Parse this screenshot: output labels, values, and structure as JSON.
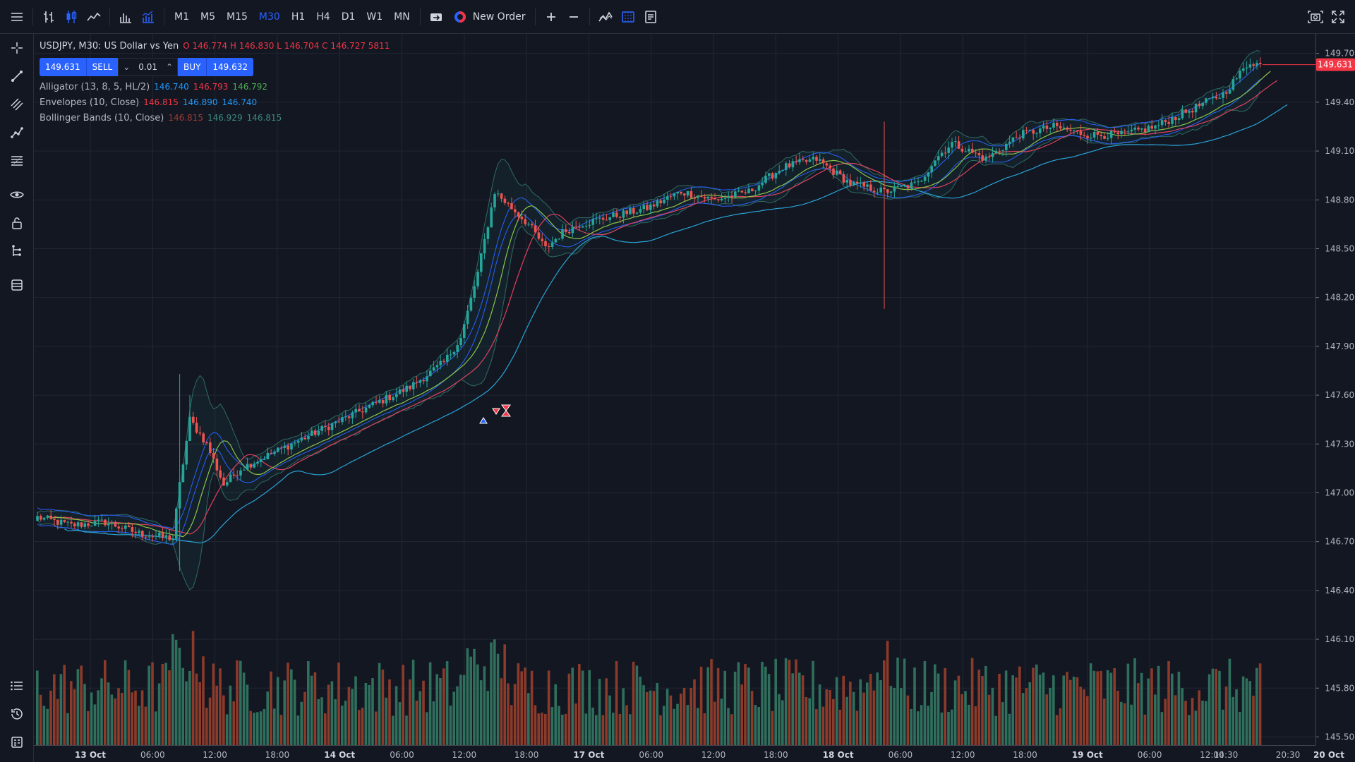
{
  "toolbar": {
    "timeframes": [
      "M1",
      "M5",
      "M15",
      "M30",
      "H1",
      "H4",
      "D1",
      "W1",
      "MN"
    ],
    "active_timeframe": "M30",
    "new_order_label": "New Order"
  },
  "legend": {
    "symbol_title": "USDJPY, M30: US Dollar vs Yen",
    "ohlc": "O 146.774 H 146.830 L 146.704 C 146.727 5811",
    "sell_price": "149.631",
    "sell_label": "SELL",
    "quantity": "0.01",
    "buy_label": "BUY",
    "buy_price": "149.632",
    "indicators": [
      {
        "name": "Alligator (13, 8, 5, HL/2)",
        "values": [
          "146.740",
          "146.793",
          "146.792"
        ],
        "colors": [
          "#2196f3",
          "#f23645",
          "#4caf50"
        ]
      },
      {
        "name": "Envelopes (10, Close)",
        "values": [
          "146.815",
          "146.890",
          "146.740"
        ],
        "colors": [
          "#f23645",
          "#2196f3",
          "#2196f3"
        ]
      },
      {
        "name": "Bollinger Bands (10, Close)",
        "values": [
          "146.815",
          "146.929",
          "146.815"
        ],
        "colors": [
          "#9c3b35",
          "#3a8a80",
          "#3a8a80"
        ]
      }
    ]
  },
  "colors": {
    "bull": "#26a69a",
    "bear": "#ef5350",
    "vol_bull": "#2f6f5c",
    "vol_bear": "#8c3a2a",
    "grid": "#232733",
    "current_price_bg": "#f23645"
  },
  "price_axis": {
    "labels": [
      "149.700",
      "149.400",
      "149.100",
      "148.800",
      "148.500",
      "148.200",
      "147.900",
      "147.600",
      "147.300",
      "147.000",
      "146.700",
      "146.400",
      "146.100",
      "145.800",
      "145.500"
    ],
    "current_price": "149.631"
  },
  "time_axis": {
    "labels": [
      "13 Oct",
      "06:00",
      "12:00",
      "18:00",
      "14 Oct",
      "06:00",
      "12:00",
      "18:00",
      "17 Oct",
      "06:00",
      "12:00",
      "18:00",
      "18 Oct",
      "06:00",
      "12:00",
      "18:00",
      "19 Oct",
      "06:00",
      "12:00",
      "14:30",
      "20:30",
      "20 Oct"
    ],
    "bold": [
      true,
      false,
      false,
      false,
      true,
      false,
      false,
      false,
      true,
      false,
      false,
      false,
      true,
      false,
      false,
      false,
      true,
      false,
      false,
      false,
      false,
      true
    ]
  },
  "chart_data": {
    "type": "candlestick",
    "symbol": "USDJPY",
    "timeframe": "M30",
    "ylim": [
      145.45,
      149.82
    ],
    "close_path": [
      [
        0,
        146.85
      ],
      [
        10,
        146.8
      ],
      [
        20,
        146.82
      ],
      [
        30,
        146.75
      ],
      [
        40,
        146.72
      ],
      [
        42,
        147.05
      ],
      [
        45,
        147.45
      ],
      [
        50,
        147.3
      ],
      [
        55,
        147.05
      ],
      [
        60,
        147.15
      ],
      [
        70,
        147.25
      ],
      [
        80,
        147.35
      ],
      [
        90,
        147.45
      ],
      [
        100,
        147.55
      ],
      [
        110,
        147.65
      ],
      [
        120,
        147.8
      ],
      [
        125,
        147.95
      ],
      [
        130,
        148.35
      ],
      [
        135,
        148.85
      ],
      [
        140,
        148.75
      ],
      [
        145,
        148.65
      ],
      [
        150,
        148.5
      ],
      [
        155,
        148.6
      ],
      [
        160,
        148.65
      ],
      [
        170,
        148.7
      ],
      [
        180,
        148.75
      ],
      [
        190,
        148.85
      ],
      [
        200,
        148.8
      ],
      [
        210,
        148.85
      ],
      [
        220,
        149.0
      ],
      [
        230,
        149.05
      ],
      [
        240,
        148.9
      ],
      [
        250,
        148.85
      ],
      [
        260,
        148.9
      ],
      [
        265,
        149.05
      ],
      [
        270,
        149.15
      ],
      [
        280,
        149.05
      ],
      [
        290,
        149.2
      ],
      [
        300,
        149.25
      ],
      [
        310,
        149.2
      ],
      [
        320,
        149.2
      ],
      [
        330,
        149.25
      ],
      [
        340,
        149.35
      ],
      [
        350,
        149.45
      ],
      [
        358,
        149.65
      ],
      [
        361,
        149.63
      ]
    ],
    "volume_range": [
      0,
      6000
    ]
  }
}
